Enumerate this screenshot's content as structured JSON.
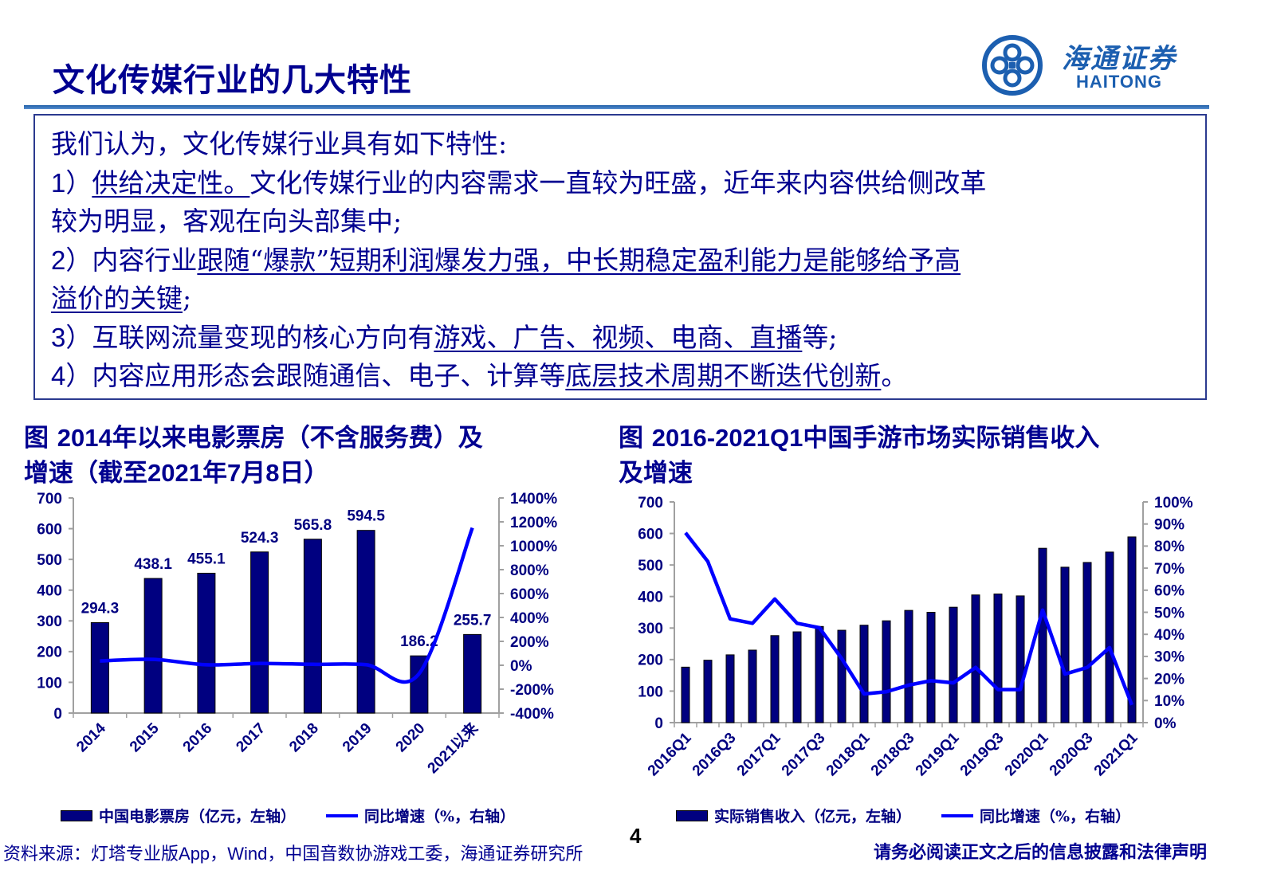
{
  "header": {
    "title": "文化传媒行业的几大特性",
    "logo_cn": "海通证券",
    "logo_en": "HAITONG",
    "logo_icon": "haitong-swirl-logo-icon",
    "brand_color": "#1c5fb0"
  },
  "summary": {
    "intro": "我们认为，文化传媒行业具有如下特性:",
    "points": [
      {
        "num": "1",
        "paren": "）",
        "u1": "供给决定性。",
        "rest1": "文化传媒行业的内容需求一直较为旺盛，近年来内容供给侧改革",
        "line2": "较为明显，客观在向头部集中;"
      },
      {
        "num": "2",
        "paren": "）",
        "pre": "内容行业",
        "u1": "跟随“爆款”短期利润爆发力强，中长期稳定盈利能力是能够给予高",
        "u2": "溢价的关键",
        "post": ";"
      },
      {
        "num": "3",
        "paren": "）",
        "pre": "互联网流量变现的核心方向有",
        "u1": "游戏、广告、视频、电商、直播",
        "post": "等;"
      },
      {
        "num": "4",
        "paren": "）",
        "pre": "内容应用形态会跟随通信、电子、计算等",
        "u1": "底层技术周期不断迭代创新",
        "post": "。"
      }
    ]
  },
  "chart_left_caption": {
    "line1_a": "图 ",
    "line1_n": "2014",
    "line1_b": "年以来电影票房（不含服务费）及",
    "line2_a": "增速（截至",
    "line2_n1": "2021",
    "line2_b": "年",
    "line2_n2": "7",
    "line2_c": "月",
    "line2_n3": "8",
    "line2_d": "日）"
  },
  "chart_right_caption": {
    "line1_a": "图  ",
    "line1_n": "2016-2021Q1",
    "line1_b": "中国手游市场实际销售收入",
    "line2": "及增速"
  },
  "chart_data": [
    {
      "type": "bar",
      "title": "2014年以来电影票房（不含服务费）及增速（截至2021年7月8日）",
      "categories": [
        "2014",
        "2015",
        "2016",
        "2017",
        "2018",
        "2019",
        "2020",
        "2021以来"
      ],
      "series": [
        {
          "name": "中国电影票房（亿元，左轴）",
          "type": "bar",
          "axis": "left",
          "color": "#000080",
          "values": [
            294.3,
            438.1,
            455.1,
            524.3,
            565.8,
            594.5,
            186.2,
            255.7
          ]
        },
        {
          "name": "同比增速（%，右轴）",
          "type": "line",
          "axis": "right",
          "color": "#0000ff",
          "values": [
            36,
            49,
            4,
            15,
            8,
            5,
            -69,
            1150
          ]
        }
      ],
      "data_labels": [
        "294.3",
        "438.1",
        "455.1",
        "524.3",
        "565.8",
        "594.5",
        "186.2",
        "255.7"
      ],
      "ylim_left": [
        0,
        700
      ],
      "yticks_left": [
        "0",
        "100",
        "200",
        "300",
        "400",
        "500",
        "600",
        "700"
      ],
      "ylim_right": [
        -400,
        1400
      ],
      "yticks_right": [
        "-400%",
        "-200%",
        "0%",
        "200%",
        "400%",
        "600%",
        "800%",
        "1000%",
        "1200%",
        "1400%"
      ],
      "grid": false,
      "legend_position": "bottom"
    },
    {
      "type": "bar",
      "title": "2016-2021Q1中国手游市场实际销售收入及增速",
      "categories": [
        "2016Q1",
        "2016Q2",
        "2016Q3",
        "2016Q4",
        "2017Q1",
        "2017Q2",
        "2017Q3",
        "2017Q4",
        "2018Q1",
        "2018Q2",
        "2018Q3",
        "2018Q4",
        "2019Q1",
        "2019Q2",
        "2019Q3",
        "2019Q4",
        "2020Q1",
        "2020Q2",
        "2020Q3",
        "2020Q4",
        "2021Q1"
      ],
      "xtick_labels": [
        "2016Q1",
        "2016Q3",
        "2017Q1",
        "2017Q3",
        "2018Q1",
        "2018Q3",
        "2019Q1",
        "2019Q3",
        "2020Q1",
        "2020Q3",
        "2021Q1"
      ],
      "series": [
        {
          "name": "实际销售收入（亿元，左轴）",
          "type": "bar",
          "axis": "left",
          "color": "#000080",
          "values": [
            176,
            198,
            215,
            230,
            276,
            288,
            305,
            293,
            309,
            323,
            356,
            350,
            366,
            405,
            408,
            402,
            553,
            493,
            508,
            541,
            589
          ]
        },
        {
          "name": "同比增速（%，右轴）",
          "type": "line",
          "axis": "right",
          "color": "#0000ff",
          "values": [
            86,
            73,
            47,
            45,
            56,
            45,
            43,
            29,
            13,
            14,
            17,
            19,
            18,
            25,
            15,
            15,
            51,
            22,
            25,
            34,
            8
          ]
        }
      ],
      "ylim_left": [
        0,
        700
      ],
      "yticks_left": [
        "0",
        "100",
        "200",
        "300",
        "400",
        "500",
        "600",
        "700"
      ],
      "ylim_right": [
        0,
        100
      ],
      "yticks_right": [
        "0%",
        "10%",
        "20%",
        "30%",
        "40%",
        "50%",
        "60%",
        "70%",
        "80%",
        "90%",
        "100%"
      ],
      "grid": false,
      "legend_position": "bottom"
    }
  ],
  "legend_left": {
    "bar": "中国电影票房（亿元，左轴）",
    "line": "同比增速（%，右轴）"
  },
  "legend_right": {
    "bar": "实际销售收入（亿元，左轴）",
    "line": "同比增速（%，右轴）"
  },
  "footer": {
    "source_a": "资料来源：灯塔专业版",
    "source_n1": "App",
    "source_b": "，",
    "source_n2": "Wind",
    "source_c": "，中国音数协游戏工委，海通证券研究所",
    "page_number": "4",
    "disclaimer": "请务必阅读正文之后的信息披露和法律声明"
  }
}
